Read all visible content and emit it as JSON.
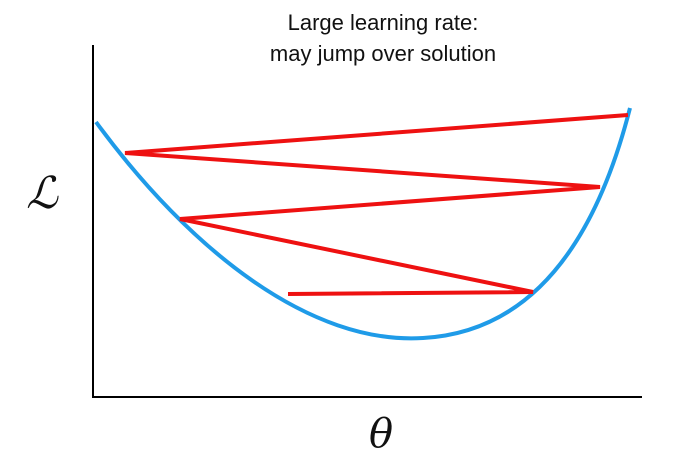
{
  "diagram": {
    "title_lines": [
      "Large learning rate:",
      "may jump over solution"
    ],
    "y_label": "ℒ",
    "x_label": "θ"
  }
}
